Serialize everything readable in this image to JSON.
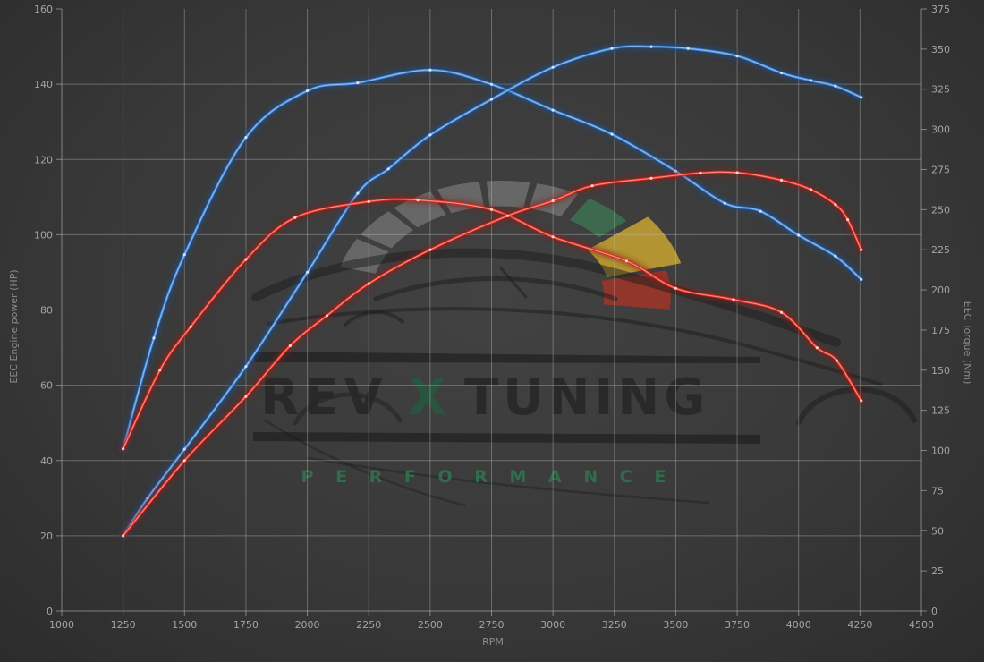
{
  "watermark": {
    "brand_left": "REV",
    "brand_x": "X",
    "brand_right": "TUNING",
    "tagline": "P E R F O R M A N C E",
    "brand_color": "#262626",
    "x_color": "#26583f",
    "tagline_color": "#2e7a52",
    "bar_color": "#1a1a1a",
    "car_color": "#1c1c1c",
    "gauge_gray": "#989898",
    "gauge_green": "#3d7a54",
    "gauge_yellow": "#c7a430",
    "gauge_red": "#a83428"
  },
  "axes": {
    "x_title": "RPM",
    "y_left_title": "EEC Engine power (HP)",
    "y_right_title": "EEC Torque (Nm)",
    "x_ticks": [
      1000,
      1250,
      1500,
      1750,
      2000,
      2250,
      2500,
      2750,
      3000,
      3250,
      3500,
      3750,
      4000,
      4250,
      4500
    ],
    "y_left_ticks": [
      0,
      20,
      40,
      60,
      80,
      100,
      120,
      140,
      160
    ],
    "y_right_ticks": [
      0,
      25,
      50,
      75,
      100,
      125,
      150,
      175,
      200,
      225,
      250,
      275,
      300,
      325,
      350,
      375
    ],
    "grid_color": "#c2c2c2",
    "tick_text_color": "#a4a4a4",
    "axis_title_color": "#8d8d8d"
  },
  "chart_data": {
    "type": "line",
    "title": "",
    "xlabel": "RPM",
    "ylabel_left": "EEC Engine power (HP)",
    "ylabel_right": "EEC Torque (Nm)",
    "x_range": [
      1000,
      4500
    ],
    "y_left_range": [
      0,
      160
    ],
    "y_right_range": [
      0,
      375
    ],
    "grid": true,
    "legend": "none",
    "colors": {
      "blue": {
        "glow": "#1d4f92",
        "main": "#3b7ccd",
        "core": "#8fc0ef",
        "marker": "#d8e9fb"
      },
      "red": {
        "glow": "#8e1d17",
        "main": "#d32b22",
        "core": "#ff8d7e",
        "marker": "#ffd9d2"
      }
    },
    "series": [
      {
        "name": "torque-curve-blue",
        "axis": "right",
        "unit": "Nm",
        "color": "blue",
        "points": [
          [
            1250,
            101
          ],
          [
            1375,
            170
          ],
          [
            1500,
            222
          ],
          [
            1750,
            295
          ],
          [
            2000,
            324
          ],
          [
            2205,
            329
          ],
          [
            2500,
            337
          ],
          [
            2750,
            328
          ],
          [
            3000,
            312
          ],
          [
            3240,
            297
          ],
          [
            3500,
            274
          ],
          [
            3700,
            254
          ],
          [
            3845,
            249
          ],
          [
            4000,
            234
          ],
          [
            4150,
            221
          ],
          [
            4255,
            206.5
          ]
        ]
      },
      {
        "name": "power-curve-blue",
        "axis": "left",
        "unit": "HP",
        "color": "blue",
        "points": [
          [
            1250,
            20
          ],
          [
            1350,
            30
          ],
          [
            1500,
            43
          ],
          [
            1750,
            65
          ],
          [
            2000,
            90
          ],
          [
            2205,
            111
          ],
          [
            2330,
            117.5
          ],
          [
            2500,
            126.5
          ],
          [
            2750,
            136
          ],
          [
            3000,
            144.5
          ],
          [
            3240,
            149.5
          ],
          [
            3400,
            150
          ],
          [
            3550,
            149.5
          ],
          [
            3750,
            147.5
          ],
          [
            3930,
            143
          ],
          [
            4050,
            141
          ],
          [
            4150,
            139.5
          ],
          [
            4255,
            136.5
          ]
        ]
      },
      {
        "name": "torque-curve-red",
        "axis": "right",
        "unit": "Nm",
        "color": "red",
        "points": [
          [
            1250,
            101
          ],
          [
            1400,
            150
          ],
          [
            1525,
            177
          ],
          [
            1750,
            219
          ],
          [
            1950,
            245
          ],
          [
            2250,
            255
          ],
          [
            2450,
            256
          ],
          [
            2750,
            250
          ],
          [
            3000,
            233
          ],
          [
            3300,
            218
          ],
          [
            3500,
            201
          ],
          [
            3735,
            194
          ],
          [
            3930,
            186
          ],
          [
            4075,
            164
          ],
          [
            4155,
            156
          ],
          [
            4255,
            131
          ]
        ]
      },
      {
        "name": "power-curve-red",
        "axis": "left",
        "unit": "HP",
        "color": "red",
        "points": [
          [
            1250,
            20
          ],
          [
            1500,
            40
          ],
          [
            1750,
            57
          ],
          [
            1930,
            70.5
          ],
          [
            2080,
            78.5
          ],
          [
            2250,
            87
          ],
          [
            2500,
            96
          ],
          [
            2815,
            105
          ],
          [
            3000,
            109
          ],
          [
            3160,
            113
          ],
          [
            3400,
            115
          ],
          [
            3600,
            116.4
          ],
          [
            3750,
            116.5
          ],
          [
            3930,
            114.5
          ],
          [
            4050,
            112
          ],
          [
            4150,
            108
          ],
          [
            4200,
            104
          ],
          [
            4255,
            96
          ]
        ]
      }
    ]
  }
}
